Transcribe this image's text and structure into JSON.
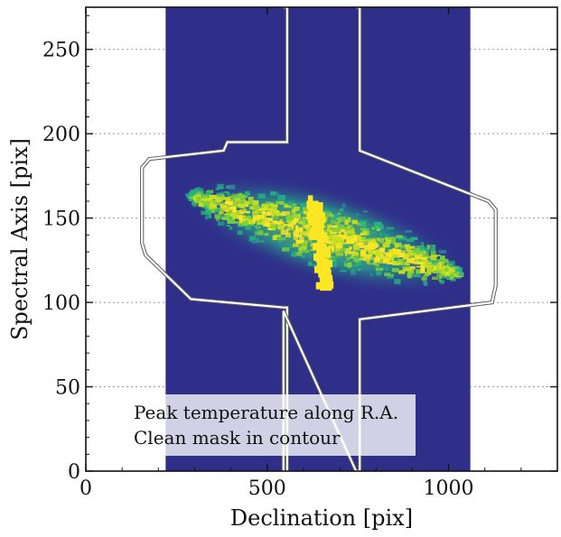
{
  "chart_data": {
    "type": "heatmap",
    "title": "",
    "xlabel": "Declination [pix]",
    "ylabel": "Spectral Axis [pix]",
    "xlim": [
      0,
      1300
    ],
    "ylim": [
      0,
      275
    ],
    "x_ticks": [
      0,
      500,
      1000
    ],
    "x_tick_labels": [
      "0",
      "500",
      "1000"
    ],
    "y_ticks": [
      0,
      50,
      100,
      150,
      200,
      250
    ],
    "y_tick_labels": [
      "0",
      "50",
      "100",
      "150",
      "200",
      "250"
    ],
    "grid": true,
    "data_extent_x": [
      220,
      1060
    ],
    "background_color": "#2f2f8a",
    "emission_colors": [
      "#2f8fa0",
      "#25b080",
      "#7fce3c",
      "#c6e020",
      "#fde725"
    ],
    "emission_region": {
      "center": [
        660,
        140
      ],
      "major_axis_end_left": [
        270,
        165
      ],
      "major_axis_end_right": [
        1020,
        118
      ],
      "central_bright_feature": [
        [
          630,
          160
        ],
        [
          650,
          130
        ],
        [
          665,
          108
        ]
      ]
    },
    "mask_contour": [
      [
        545,
        275
      ],
      [
        555,
        275
      ],
      [
        555,
        195
      ],
      [
        400,
        195
      ],
      [
        390,
        195
      ],
      [
        380,
        190
      ],
      [
        175,
        185
      ],
      [
        155,
        180
      ],
      [
        155,
        135
      ],
      [
        165,
        128
      ],
      [
        290,
        102
      ],
      [
        545,
        97
      ],
      [
        555,
        97
      ],
      [
        555,
        0
      ],
      [
        545,
        0
      ],
      [
        545,
        95
      ],
      [
        745,
        0
      ],
      [
        755,
        0
      ],
      [
        755,
        90
      ],
      [
        1120,
        100
      ],
      [
        1130,
        110
      ],
      [
        1130,
        155
      ],
      [
        1110,
        160
      ],
      [
        755,
        190
      ],
      [
        755,
        275
      ],
      [
        745,
        275
      ]
    ],
    "legend": {
      "placement": "bottom-left",
      "lines": [
        "Peak temperature along R.A.",
        "Clean mask in contour"
      ]
    }
  }
}
